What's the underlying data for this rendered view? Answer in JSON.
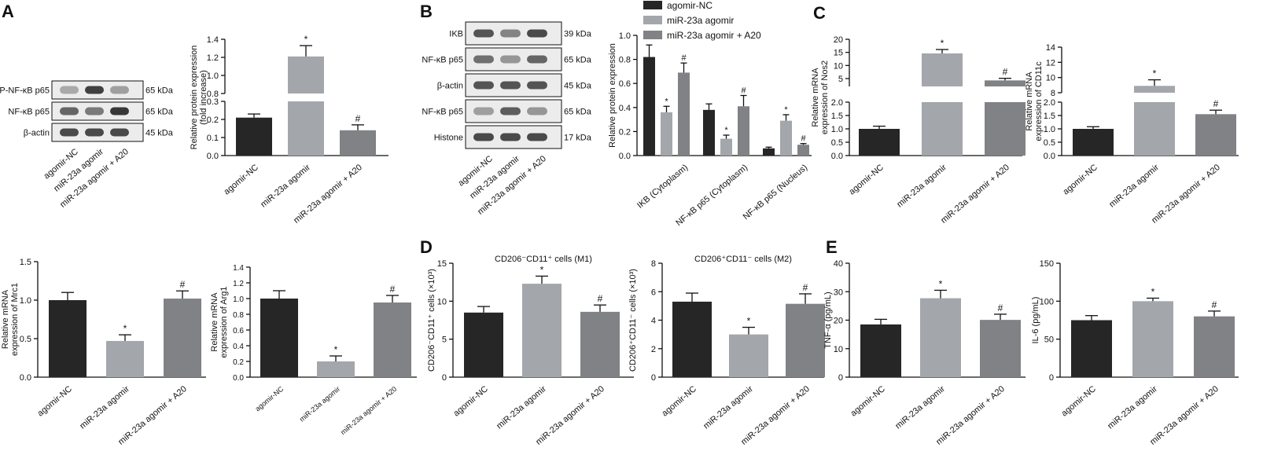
{
  "colors": {
    "nc": "#262626",
    "ago": "#a3a6aa",
    "a20": "#808285",
    "axis": "#111111",
    "blotBg": "#ececec",
    "band": "#2e2e2e"
  },
  "panel_labels": [
    "A",
    "B",
    "C",
    "D",
    "E"
  ],
  "groups": [
    "agomir-NC",
    "miR-23a agomir",
    "miR-23a agomir + A20"
  ],
  "sig": {
    "star": "*",
    "hash": "#"
  },
  "blotA": {
    "rows": [
      {
        "label": "P-NF-κB p65",
        "kda": "65 kDa",
        "bands": [
          0.35,
          0.9,
          0.4
        ]
      },
      {
        "label": "NF-κB p65",
        "kda": "65 kDa",
        "bands": [
          0.7,
          0.6,
          0.95
        ]
      },
      {
        "label": "β-actin",
        "kda": "45 kDa",
        "bands": [
          0.85,
          0.85,
          0.85
        ]
      }
    ]
  },
  "blotB": {
    "rows": [
      {
        "label": "IKB",
        "kda": "39 kDa",
        "bands": [
          0.8,
          0.55,
          0.85
        ]
      },
      {
        "label": "NF-κB p65",
        "kda": "65 kDa",
        "bands": [
          0.65,
          0.45,
          0.7
        ]
      },
      {
        "label": "β-actin",
        "kda": "45 kDa",
        "bands": [
          0.8,
          0.8,
          0.8
        ]
      },
      {
        "label": "NF-κB p65",
        "kda": "65 kDa",
        "bands": [
          0.4,
          0.75,
          0.45
        ]
      },
      {
        "label": "Histone",
        "kda": "17 kDa",
        "bands": [
          0.85,
          0.85,
          0.85
        ]
      }
    ]
  },
  "legend": [
    "agomir-NC",
    "miR-23a agomir",
    "miR-23a agomir + A20"
  ],
  "chart_data": [
    {
      "id": "A",
      "type": "bar",
      "categories": [
        "agomir-NC",
        "miR-23a agomir",
        "miR-23a agomir + A20"
      ],
      "values": [
        0.21,
        1.21,
        0.14
      ],
      "errors": [
        0.02,
        0.12,
        0.03
      ],
      "ylabel": "Relative protein expression (fold increase)",
      "axis_break": [
        0.3,
        0.8
      ],
      "ylim_lower": [
        0,
        0.3
      ],
      "ylim_upper": [
        0.8,
        1.4
      ],
      "ticks_lower": [
        "0.0",
        "0.1",
        "0.2",
        "0.3"
      ],
      "ticks_upper": [
        "0.8",
        "1.0",
        "1.2",
        "1.4"
      ],
      "marks": [
        "",
        "*",
        "#"
      ]
    },
    {
      "id": "B",
      "type": "bar",
      "categories": [
        "IKB (Cytoplasm)",
        "NF-κB p65 (Cytoplasm)",
        "NF-κB p65 (Nucleus)"
      ],
      "series": [
        {
          "name": "agomir-NC",
          "values": [
            0.82,
            0.38,
            0.06
          ],
          "errors": [
            0.1,
            0.05,
            0.01
          ]
        },
        {
          "name": "miR-23a agomir",
          "values": [
            0.36,
            0.14,
            0.29
          ],
          "errors": [
            0.05,
            0.03,
            0.05
          ]
        },
        {
          "name": "miR-23a agomir + A20",
          "values": [
            0.69,
            0.41,
            0.09
          ],
          "errors": [
            0.08,
            0.09,
            0.01
          ]
        }
      ],
      "marks": [
        [
          "",
          "*",
          "#"
        ],
        [
          "",
          "*",
          "#"
        ],
        [
          "",
          "*",
          "#"
        ]
      ],
      "ylabel": "Relative protein expression",
      "ylim": [
        0,
        1.0
      ],
      "ticks": [
        "0.0",
        "0.2",
        "0.4",
        "0.6",
        "0.8",
        "1.0"
      ]
    },
    {
      "id": "C1",
      "type": "bar",
      "categories": [
        "agomir-NC",
        "miR-23a agomir",
        "miR-23a agomir + A20"
      ],
      "values": [
        1.0,
        14.6,
        4.3
      ],
      "errors": [
        0.1,
        1.5,
        0.8
      ],
      "ylabel": "Relative mRNA expression of Nos2",
      "axis_break": [
        2.0,
        2.0
      ],
      "ylim_lower": [
        0,
        2.0
      ],
      "ylim_upper": [
        2.0,
        20
      ],
      "ticks_lower": [
        "0.0",
        "0.5",
        "1.0",
        "1.5",
        "2.0"
      ],
      "ticks_upper": [
        "5",
        "10",
        "15",
        "20"
      ],
      "marks": [
        "",
        "*",
        "#"
      ]
    },
    {
      "id": "C2",
      "type": "bar",
      "categories": [
        "agomir-NC",
        "miR-23a agomir",
        "miR-23a agomir + A20"
      ],
      "values": [
        1.0,
        8.9,
        1.55
      ],
      "errors": [
        0.08,
        0.8,
        0.15
      ],
      "ylabel": "Relative mRNA expression of CD11c",
      "axis_break": [
        2.0,
        8.0
      ],
      "ylim_lower": [
        0,
        2.0
      ],
      "ylim_upper": [
        8,
        14
      ],
      "ticks_lower": [
        "0.0",
        "0.5",
        "1.0",
        "1.5",
        "2.0"
      ],
      "ticks_upper": [
        "8",
        "10",
        "12",
        "14"
      ],
      "marks": [
        "",
        "*",
        "#"
      ]
    },
    {
      "id": "Mrc1",
      "type": "bar",
      "categories": [
        "agomir-NC",
        "miR-23a agomir",
        "miR-23a agomir + A20"
      ],
      "values": [
        1.0,
        0.47,
        1.02
      ],
      "errors": [
        0.1,
        0.08,
        0.1
      ],
      "ylabel": "Relative mRNA expression of Mrc1",
      "ylim": [
        0,
        1.5
      ],
      "ticks": [
        "0.0",
        "0.5",
        "1.0",
        "1.5"
      ],
      "marks": [
        "",
        "*",
        "#"
      ]
    },
    {
      "id": "Arg1",
      "type": "bar",
      "categories": [
        "agomir-NC",
        "miR-23a agomir",
        "miR-23a agomir + A20"
      ],
      "values": [
        1.0,
        0.2,
        0.95
      ],
      "errors": [
        0.1,
        0.07,
        0.09
      ],
      "ylabel": "Relative mRNA expression of Arg1",
      "ylim": [
        0,
        1.4
      ],
      "ticks": [
        "0.0",
        "0.2",
        "0.4",
        "0.6",
        "0.8",
        "1.0",
        "1.2",
        "1.4"
      ],
      "marks": [
        "",
        "*",
        "#"
      ]
    },
    {
      "id": "D1",
      "type": "bar",
      "categories": [
        "agomir-NC",
        "miR-23a agomir",
        "miR-23a agomir + A20"
      ],
      "values": [
        8.5,
        12.3,
        8.6
      ],
      "errors": [
        0.8,
        1.0,
        0.9
      ],
      "title": "CD206⁻CD11⁺ cells (M1)",
      "ylabel": "CD206⁻CD11⁺ cells (×10³)",
      "ylim": [
        0,
        15
      ],
      "ticks": [
        "0",
        "5",
        "10",
        "15"
      ],
      "marks": [
        "",
        "*",
        "#"
      ]
    },
    {
      "id": "D2",
      "type": "bar",
      "categories": [
        "agomir-NC",
        "miR-23a agomir",
        "miR-23a agomir + A20"
      ],
      "values": [
        5.3,
        3.0,
        5.15
      ],
      "errors": [
        0.6,
        0.5,
        0.7
      ],
      "title": "CD206⁺CD11⁻ cells (M2)",
      "ylabel": "CD206⁺CD11⁻ cells (×10³)",
      "ylim": [
        0,
        8
      ],
      "ticks": [
        "0",
        "2",
        "4",
        "6",
        "8"
      ],
      "marks": [
        "",
        "*",
        "#"
      ]
    },
    {
      "id": "E1",
      "type": "bar",
      "categories": [
        "agomir-NC",
        "miR-23a agomir",
        "miR-23a agomir + A20"
      ],
      "values": [
        18.5,
        27.7,
        20.1
      ],
      "errors": [
        1.8,
        2.8,
        2.0
      ],
      "ylabel": "TNF-α (pg/mL)",
      "ylim": [
        0,
        40
      ],
      "ticks": [
        "0",
        "10",
        "20",
        "30",
        "40"
      ],
      "marks": [
        "",
        "*",
        "#"
      ]
    },
    {
      "id": "E2",
      "type": "bar",
      "categories": [
        "agomir-NC",
        "miR-23a agomir",
        "miR-23a agomir + A20"
      ],
      "values": [
        75,
        100,
        80
      ],
      "errors": [
        6,
        4,
        7
      ],
      "ylabel": "IL-6 (pg/mL)",
      "ylim": [
        0,
        150
      ],
      "ticks": [
        "0",
        "50",
        "100",
        "150"
      ],
      "marks": [
        "",
        "*",
        "#"
      ]
    }
  ]
}
